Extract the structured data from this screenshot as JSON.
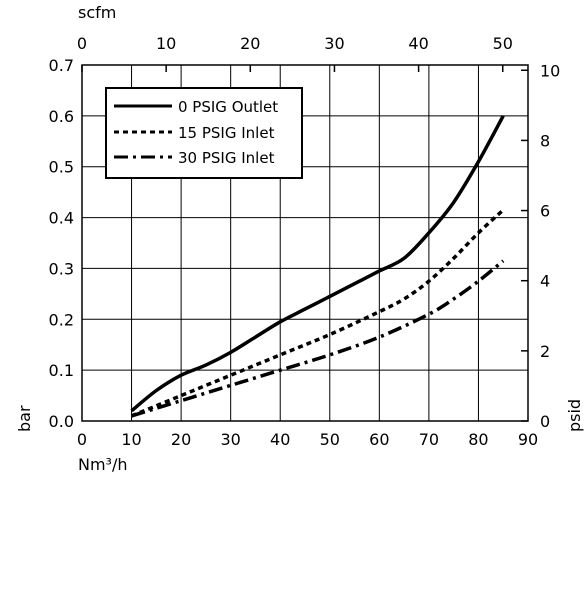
{
  "chart_data": {
    "type": "line",
    "x_axis": {
      "label": "Nm³/h",
      "range": [
        0,
        90
      ],
      "ticks": [
        "0",
        "10",
        "20",
        "30",
        "40",
        "50",
        "60",
        "70",
        "80",
        "90"
      ]
    },
    "x2_axis": {
      "label": "scfm",
      "range": [
        0,
        53
      ],
      "ticks": [
        "0",
        "10",
        "20",
        "30",
        "40",
        "50"
      ]
    },
    "y_axis": {
      "label": "bar",
      "range": [
        0,
        0.7
      ],
      "ticks": [
        "0.0",
        "0.1",
        "0.2",
        "0.3",
        "0.4",
        "0.5",
        "0.6",
        "0.7"
      ]
    },
    "y2_axis": {
      "label": "psid",
      "range": [
        0,
        10.15
      ],
      "ticks": [
        "0",
        "2",
        "4",
        "6",
        "8",
        "10"
      ]
    },
    "grid": true,
    "legend": {
      "position": "top-left"
    },
    "series": [
      {
        "name": "0 PSIG Outlet",
        "style": "solid",
        "x": [
          10,
          15,
          20,
          25,
          30,
          35,
          40,
          45,
          50,
          55,
          60,
          65,
          70,
          75,
          80,
          85
        ],
        "y": [
          0.02,
          0.06,
          0.09,
          0.11,
          0.135,
          0.165,
          0.195,
          0.22,
          0.245,
          0.27,
          0.295,
          0.32,
          0.37,
          0.43,
          0.51,
          0.6
        ]
      },
      {
        "name": "15 PSIG Inlet",
        "style": "dotted",
        "x": [
          10,
          20,
          30,
          40,
          50,
          60,
          65,
          70,
          75,
          80,
          85
        ],
        "y": [
          0.01,
          0.05,
          0.09,
          0.13,
          0.17,
          0.215,
          0.24,
          0.275,
          0.32,
          0.37,
          0.415
        ]
      },
      {
        "name": "30 PSIG Inlet",
        "style": "dashdot",
        "x": [
          10,
          20,
          30,
          40,
          50,
          60,
          70,
          75,
          80,
          85
        ],
        "y": [
          0.01,
          0.04,
          0.07,
          0.1,
          0.13,
          0.165,
          0.21,
          0.24,
          0.275,
          0.315
        ]
      }
    ]
  }
}
